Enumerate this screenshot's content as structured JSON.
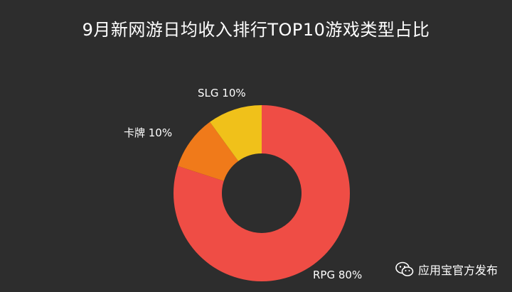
{
  "chart_data": {
    "type": "pie",
    "title": "9月新网游日均收入排行TOP10游戏类型占比",
    "categories": [
      "RPG",
      "卡牌",
      "SLG"
    ],
    "values": [
      80,
      10,
      10
    ],
    "labels": [
      "RPG 80%",
      "卡牌 10%",
      "SLG 10%"
    ],
    "colors": [
      "#ef4d45",
      "#f07a1a",
      "#f0c11a"
    ],
    "donut": true,
    "legend": "none"
  },
  "watermark": {
    "icon": "wechat-icon",
    "text": "应用宝官方发布"
  }
}
